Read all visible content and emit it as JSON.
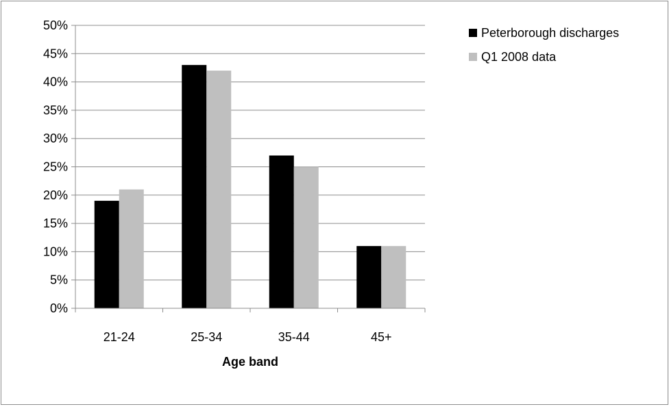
{
  "chart_data": {
    "type": "bar",
    "xlabel": "Age band",
    "ylabel": "",
    "categories": [
      "21-24",
      "25-34",
      "35-44",
      "45+"
    ],
    "series": [
      {
        "name": "Peterborough discharges",
        "color": "#000000",
        "values": [
          19,
          43,
          27,
          11
        ]
      },
      {
        "name": "Q1 2008 data",
        "color": "#bfbfbf",
        "values": [
          21,
          42,
          25,
          11
        ]
      }
    ],
    "ylim": [
      0,
      50
    ],
    "ytick_step": 5,
    "ytick_labels": [
      "0%",
      "5%",
      "10%",
      "15%",
      "20%",
      "25%",
      "30%",
      "35%",
      "40%",
      "45%",
      "50%"
    ],
    "value_unit": "%",
    "grid": true,
    "legend_position": "right"
  }
}
